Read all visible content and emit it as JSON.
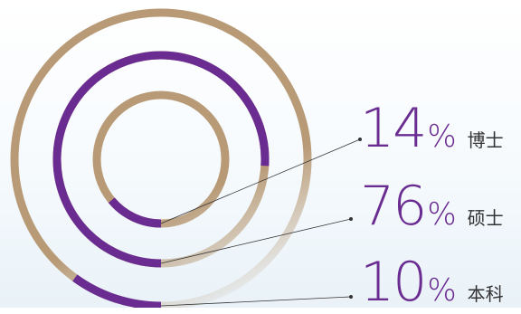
{
  "chart_data": {
    "type": "ring",
    "series": [
      {
        "label": "博士",
        "value": 14,
        "unit": "%"
      },
      {
        "label": "硕士",
        "value": 76,
        "unit": "%"
      },
      {
        "label": "本科",
        "value": 10,
        "unit": "%"
      }
    ]
  },
  "colors": {
    "highlight": "#6a2c91",
    "track": "#b89a76",
    "leader": "#333333"
  }
}
